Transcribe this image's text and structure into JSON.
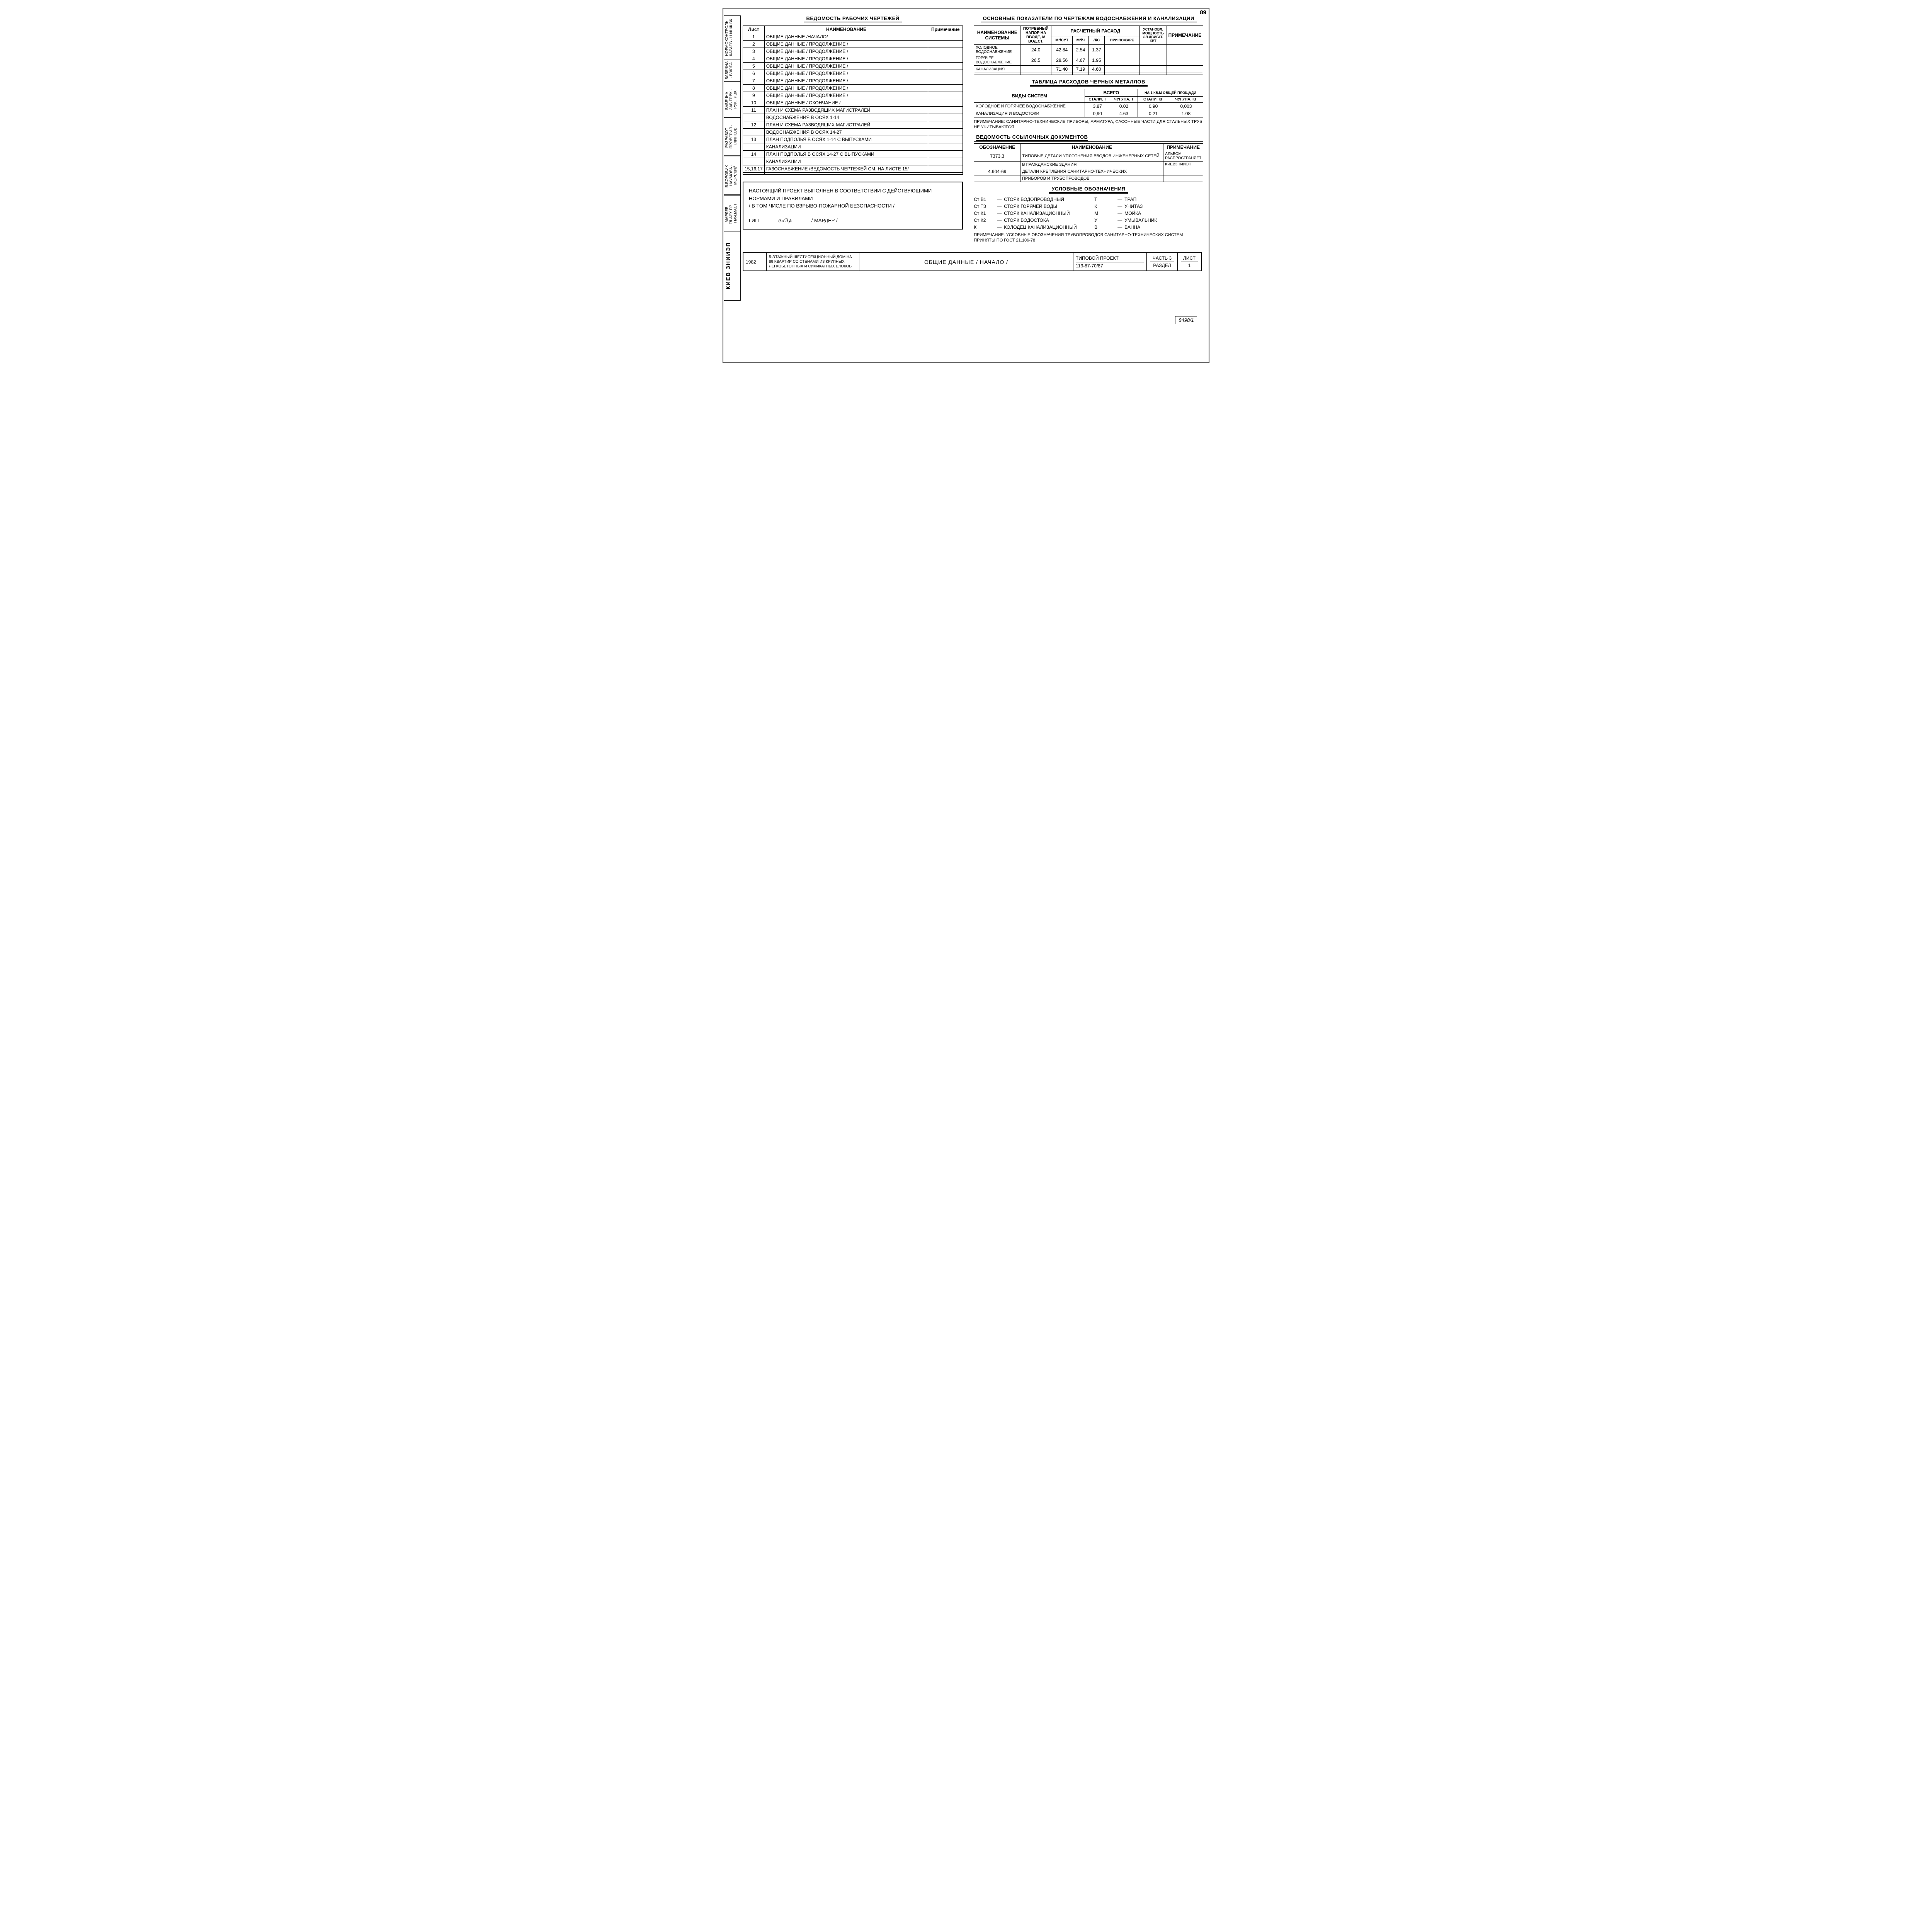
{
  "page_number": "89",
  "side_stamp": {
    "rows": [
      "НОРМОКОНТРОЛЬ",
      "КАРАЕВ",
      "Н.ИНЖ.ВК",
      "",
      "БАБЕЧНА",
      "ВЗЮБА",
      "БАБЕЧНА",
      "ЗАВ.ГР.ВК",
      "РУК.ГР.ВК",
      "РАЗРАБОТ",
      "ПРОВЕРИЛ",
      "ГЛИНКОВ",
      "В.БОРОВИК",
      "НАУМОВА",
      "МОРСКИЙ",
      "МАРЛЕВ",
      "ГЛ.АРХ.ПР",
      "НАЧ.МАСТ",
      "РУК.МАСТ",
      "ГЛ.ИНЖ.ПР",
      "НАЧ.ОТД"
    ],
    "org": "КИЕВ ЗНИИЭП"
  },
  "drawings_list": {
    "title": "ВЕДОМОСТЬ РАБОЧИХ ЧЕРТЕЖЕЙ",
    "headers": {
      "sheet": "Лист",
      "name": "НАИМЕНОВАНИЕ",
      "note": "Примечание"
    },
    "rows": [
      {
        "sheet": "1",
        "name": "ОБЩИЕ ДАННЫЕ /НАЧАЛО/"
      },
      {
        "sheet": "2",
        "name": "ОБЩИЕ ДАННЫЕ  / ПРОДОЛЖЕНИЕ /"
      },
      {
        "sheet": "3",
        "name": "ОБЩИЕ ДАННЫЕ  / ПРОДОЛЖЕНИЕ /"
      },
      {
        "sheet": "4",
        "name": "ОБЩИЕ ДАННЫЕ  / ПРОДОЛЖЕНИЕ /"
      },
      {
        "sheet": "5",
        "name": "ОБЩИЕ ДАННЫЕ  / ПРОДОЛЖЕНИЕ /"
      },
      {
        "sheet": "6",
        "name": "ОБЩИЕ ДАННЫЕ  / ПРОДОЛЖЕНИЕ /"
      },
      {
        "sheet": "7",
        "name": "ОБЩИЕ ДАННЫЕ  / ПРОДОЛЖЕНИЕ /"
      },
      {
        "sheet": "8",
        "name": "ОБЩИЕ ДАННЫЕ  / ПРОДОЛЖЕНИЕ /"
      },
      {
        "sheet": "9",
        "name": "ОБЩИЕ ДАННЫЕ  / ПРОДОЛЖЕНИЕ /"
      },
      {
        "sheet": "10",
        "name": "ОБЩИЕ ДАННЫЕ  / ОКОНЧАНИЕ /"
      },
      {
        "sheet": "11",
        "name": "ПЛАН И СХЕМА РАЗВОДЯЩИХ МАГИСТРАЛЕЙ"
      },
      {
        "sheet": "",
        "name": "ВОДОСНАБЖЕНИЯ В ОСЯХ 1-14"
      },
      {
        "sheet": "12",
        "name": "ПЛАН И СХЕМА РАЗВОДЯЩИХ МАГИСТРАЛЕЙ"
      },
      {
        "sheet": "",
        "name": "ВОДОСНАБЖЕНИЯ В ОСЯХ 14-27"
      },
      {
        "sheet": "13",
        "name": "ПЛАН ПОДПОЛЬЯ В ОСЯХ 1-14 С ВЫПУСКАМИ"
      },
      {
        "sheet": "",
        "name": "КАНАЛИЗАЦИИ"
      },
      {
        "sheet": "14",
        "name": "ПЛАН ПОДПОЛЬЯ В ОСЯХ 14-27 С ВЫПУСКАМИ"
      },
      {
        "sheet": "",
        "name": "КАНАЛИЗАЦИИ"
      },
      {
        "sheet": "15,16,17",
        "name": "ГАЗОСНАБЖЕНИЕ /ВЕДОМОСТЬ ЧЕРТЕЖЕЙ СМ. НА ЛИСТЕ 15/"
      },
      {
        "sheet": "",
        "name": ""
      }
    ]
  },
  "compliance": {
    "text1": "НАСТОЯЩИЙ ПРОЕКТ ВЫПОЛНЕН В СООТВЕТСТВИИ С ДЕЙСТВУЮЩИМИ НОРМАМИ И ПРАВИЛАМИ",
    "text2": "/ В ТОМ ЧИСЛЕ ПО ВЗРЫВО-ПОЖАРНОЙ БЕЗОПАСНОСТИ /",
    "sig_label": "ГИП",
    "sig_role": "/ МАРДЕР /"
  },
  "indicators": {
    "title": "ОСНОВНЫЕ ПОКАЗАТЕЛИ ПО ЧЕРТЕЖАМ ВОДОСНАБЖЕНИЯ И КАНАЛИЗАЦИИ",
    "headers": {
      "system": "НАИМЕНОВАНИЕ СИСТЕМЫ",
      "head": "ПОТРЕБНЫЙ НАПОР НА ВВОДЕ, М ВОД.СТ.",
      "flow": "РАСЧЕТНЫЙ РАСХОД",
      "m3d": "М³/СУТ",
      "m3h": "М³/Ч",
      "ls": "Л/С",
      "fire": "ПРИ ПОЖАРЕ",
      "power": "УСТАНОВЛ. МОЩНОСТЬ ЭЛ.ДВИГАТ. КВТ",
      "note": "ПРИМЕЧАНИЕ"
    },
    "rows": [
      {
        "system": "ХОЛОДНОЕ ВОДОСНАБЖЕНИЕ",
        "head": "24.0",
        "m3d": "42,84",
        "m3h": "2.54",
        "ls": "1.37",
        "fire": "",
        "power": "",
        "note": ""
      },
      {
        "system": "ГОРЯЧЕЕ ВОДОСНАБЖЕНИЕ",
        "head": "26.5",
        "m3d": "28.56",
        "m3h": "4.67",
        "ls": "1.95",
        "fire": "",
        "power": "",
        "note": ""
      },
      {
        "system": "КАНАЛИЗАЦИЯ",
        "head": "",
        "m3d": "71.40",
        "m3h": "7.19",
        "ls": "4.60",
        "fire": "",
        "power": "",
        "note": ""
      },
      {
        "system": "",
        "head": "",
        "m3d": "",
        "m3h": "",
        "ls": "",
        "fire": "",
        "power": "",
        "note": ""
      }
    ]
  },
  "metals": {
    "title": "ТАБЛИЦА РАСХОДОВ ЧЕРНЫХ МЕТАЛЛОВ",
    "headers": {
      "type": "ВИДЫ СИСТЕМ",
      "total": "ВСЕГО",
      "per": "НА 1 КВ.М ОБЩЕЙ ПЛОЩАДИ",
      "steel_t": "СТАЛИ, Т",
      "iron_t": "ЧУГУНА, Т",
      "steel_kg": "СТАЛИ, КГ",
      "iron_kg": "ЧУГУНА, КГ"
    },
    "rows": [
      {
        "type": "ХОЛОДНОЕ И ГОРЯЧЕЕ ВОДОСНАБЖЕНИЕ",
        "st": "3.87",
        "it": "0.02",
        "sk": "0.90",
        "ik": "0,003"
      },
      {
        "type": "КАНАЛИЗАЦИЯ И ВОДОСТОКИ",
        "st": "0,90",
        "it": "4.63",
        "sk": "0,21",
        "ik": "1.08"
      }
    ],
    "note": "ПРИМЕЧАНИЕ: САНИТАРНО-ТЕХНИЧЕСКИЕ ПРИБОРЫ, АРМАТУРА, ФАСОННЫЕ ЧАСТИ ДЛЯ СТАЛЬНЫХ ТРУБ НЕ УЧИТЫВАЮТСЯ"
  },
  "refs": {
    "title": "ВЕДОМОСТЬ ССЫЛОЧНЫХ ДОКУМЕНТОВ",
    "headers": {
      "code": "ОБОЗНАЧЕНИЕ",
      "name": "НАИМЕНОВАНИЕ",
      "note": "ПРИМЕЧАНИЕ"
    },
    "rows": [
      {
        "code": "7373.3",
        "name": "ТИПОВЫЕ ДЕТАЛИ УПЛОТНЕНИЯ ВВОДОВ ИНЖЕНЕРНЫХ СЕТЕЙ",
        "note": "АЛЬБОМ РАСПРОСТРАНЯЕТ"
      },
      {
        "code": "",
        "name": "В ГРАЖДАНСКИЕ ЗДАНИЯ",
        "note": "КИЕВЗНИИЭП"
      },
      {
        "code": "4.904-69",
        "name": "ДЕТАЛИ КРЕПЛЕНИЯ САНИТАРНО-ТЕХНИЧЕСКИХ",
        "note": ""
      },
      {
        "code": "",
        "name": "ПРИБОРОВ И ТРУБОПРОВОДОВ",
        "note": ""
      }
    ]
  },
  "legend": {
    "title": "УСЛОВНЫЕ ОБОЗНАЧЕНИЯ",
    "left": [
      {
        "code": "Ст В1",
        "desc": "СТОЯК ВОДОПРОВОДНЫЙ"
      },
      {
        "code": "Ст Т3",
        "desc": "СТОЯК ГОРЯЧЕЙ ВОДЫ"
      },
      {
        "code": "Ст К1",
        "desc": "СТОЯК КАНАЛИЗАЦИОННЫЙ"
      },
      {
        "code": "Ст К2",
        "desc": "СТОЯК ВОДОСТОКА"
      },
      {
        "code": "К",
        "desc": "КОЛОДЕЦ КАНАЛИЗАЦИОННЫЙ"
      }
    ],
    "right": [
      {
        "code": "Т",
        "desc": "ТРАП"
      },
      {
        "code": "К",
        "desc": "УНИТАЗ"
      },
      {
        "code": "М",
        "desc": "МОЙКА"
      },
      {
        "code": "У",
        "desc": "УМЫВАЛЬНИК"
      },
      {
        "code": "В",
        "desc": "ВАННА"
      }
    ],
    "note": "ПРИМЕЧАНИЕ: УСЛОВНЫЕ ОБОЗНАЧЕНИЯ ТРУБОПРОВОДОВ САНИТАРНО-ТЕХНИЧЕСКИХ СИСТЕМ ПРИНЯТЫ ПО ГОСТ 21.106-78"
  },
  "ref_num": "8498/1",
  "title_block": {
    "year": "1982",
    "building": "5-ЭТАЖНЫЙ ШЕСТИСЕКЦИОННЫЙ ДОМ НА 89 КВАРТИР СО СТЕНАМИ ИЗ КРУПНЫХ ЛЕГКОБЕТОННЫХ И СИЛИКАТНЫХ БЛОКОВ",
    "doc_title": "ОБЩИЕ ДАННЫЕ  / НАЧАЛО /",
    "proj_label": "ТИПОВОЙ ПРОЕКТ",
    "proj_num": "113-87-70/87",
    "part_label": "ЧАСТЬ 3",
    "section_label": "РАЗДЕЛ",
    "sheet_label": "ЛИСТ",
    "sheet_num": "1"
  }
}
